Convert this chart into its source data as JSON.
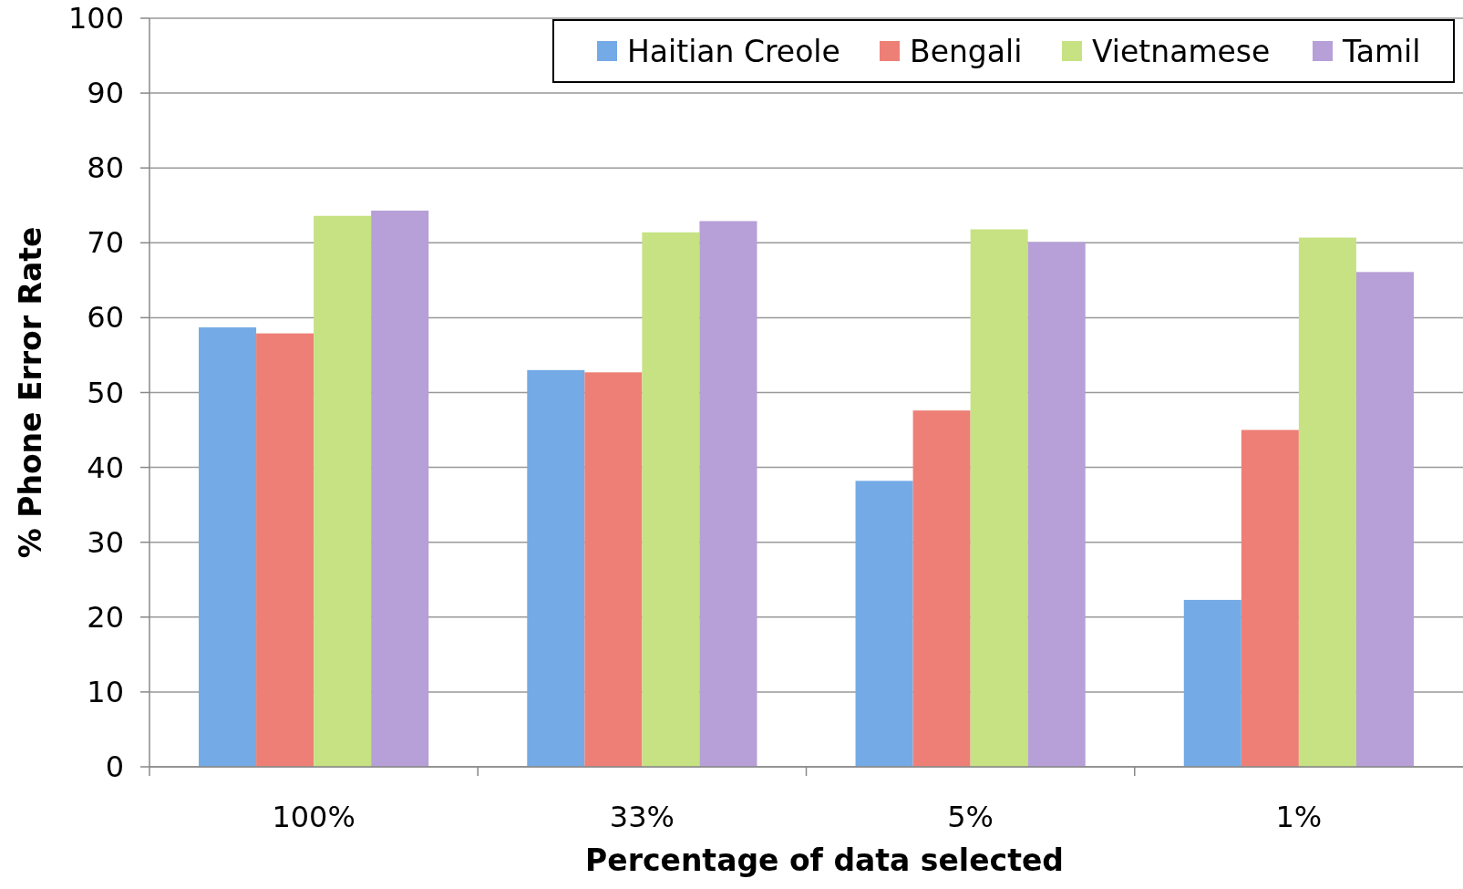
{
  "chart_data": {
    "type": "bar",
    "xlabel": "Percentage of data selected",
    "ylabel": "% Phone Error Rate",
    "categories": [
      "100%",
      "33%",
      "5%",
      "1%"
    ],
    "series": [
      {
        "name": "Haitian Creole",
        "color": "#74aae6",
        "values": [
          58.7,
          53.0,
          38.2,
          22.3
        ]
      },
      {
        "name": "Bengali",
        "color": "#ee7f76",
        "values": [
          57.9,
          52.7,
          47.6,
          45.0
        ]
      },
      {
        "name": "Vietnamese",
        "color": "#c6e283",
        "values": [
          73.6,
          71.4,
          71.8,
          70.7
        ]
      },
      {
        "name": "Tamil",
        "color": "#b79fd8",
        "values": [
          74.3,
          72.9,
          70.1,
          66.1
        ]
      }
    ],
    "ylim": [
      0,
      100
    ],
    "yticks": [
      0,
      10,
      20,
      30,
      40,
      50,
      60,
      70,
      80,
      90,
      100
    ],
    "grid": "y",
    "legend": "top right"
  }
}
